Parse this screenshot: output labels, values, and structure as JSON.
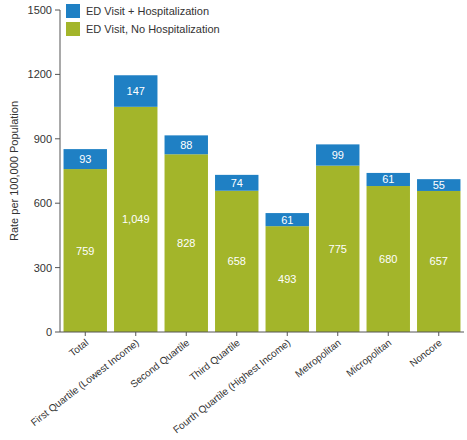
{
  "chart_data": {
    "type": "bar",
    "stacked": true,
    "data_labels": true,
    "legend": "upper left",
    "grid": false,
    "y_label": "Rate per 100,000 Population",
    "categories": [
      "Total",
      "First Quartile (Lowest Income)",
      "Second Quartile",
      "Third Quartile",
      "Fourth Quartile (Highest Income)",
      "Metropolitan",
      "Micropolitan",
      "Noncore"
    ],
    "series": [
      {
        "name": "ED Visit, No Hospitalization",
        "color": "#a3b52a",
        "values": [
          759,
          1049,
          828,
          658,
          493,
          775,
          680,
          657
        ],
        "value_labels": [
          "759",
          "1,049",
          "828",
          "658",
          "493",
          "775",
          "680",
          "657"
        ]
      },
      {
        "name": "ED Visit + Hospitalization",
        "color": "#1f80c4",
        "values": [
          93,
          147,
          88,
          74,
          61,
          99,
          61,
          55
        ]
      }
    ],
    "ylim": [
      0,
      1500
    ],
    "yticks": [
      0,
      300,
      600,
      900,
      1200,
      1500
    ]
  }
}
